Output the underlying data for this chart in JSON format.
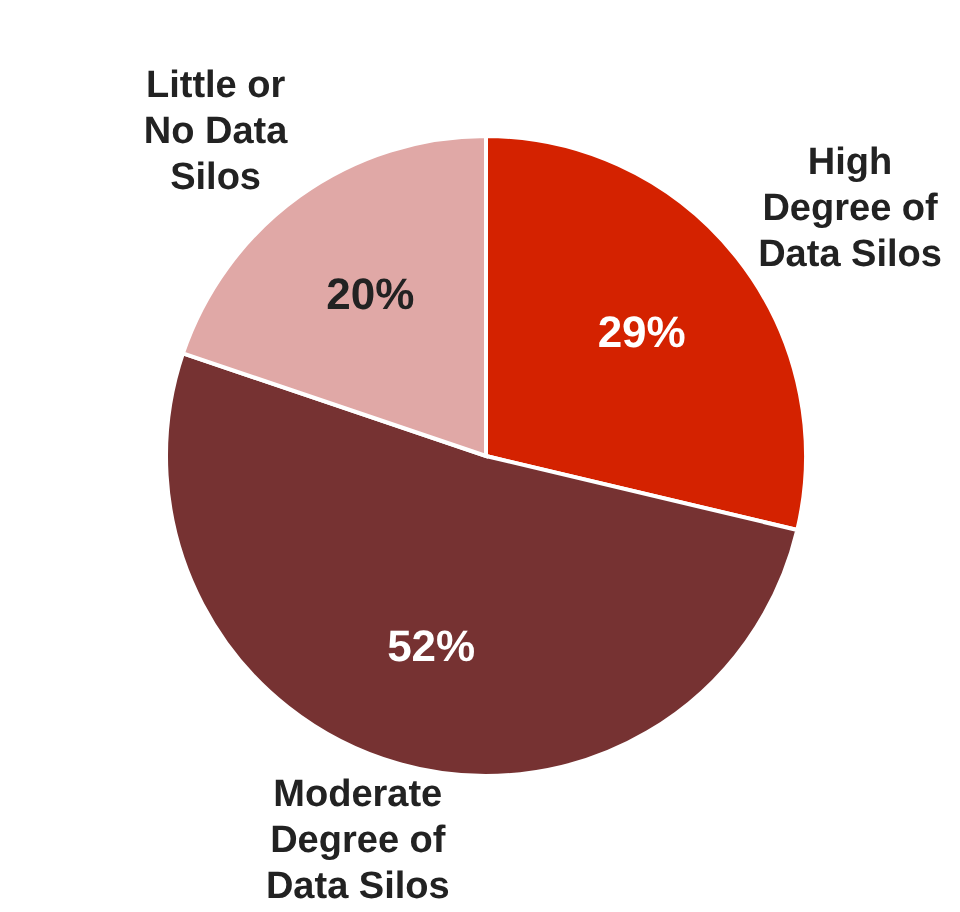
{
  "chart_data": {
    "type": "pie",
    "categories": [
      "High Degree of Data Silos",
      "Moderate Degree of Data Silos",
      "Little or No Data Silos"
    ],
    "values": [
      29,
      52,
      20
    ],
    "colors": [
      "#d42200",
      "#763232",
      "#e0a8a6"
    ],
    "value_labels": [
      "29%",
      "52%",
      "20%"
    ]
  }
}
